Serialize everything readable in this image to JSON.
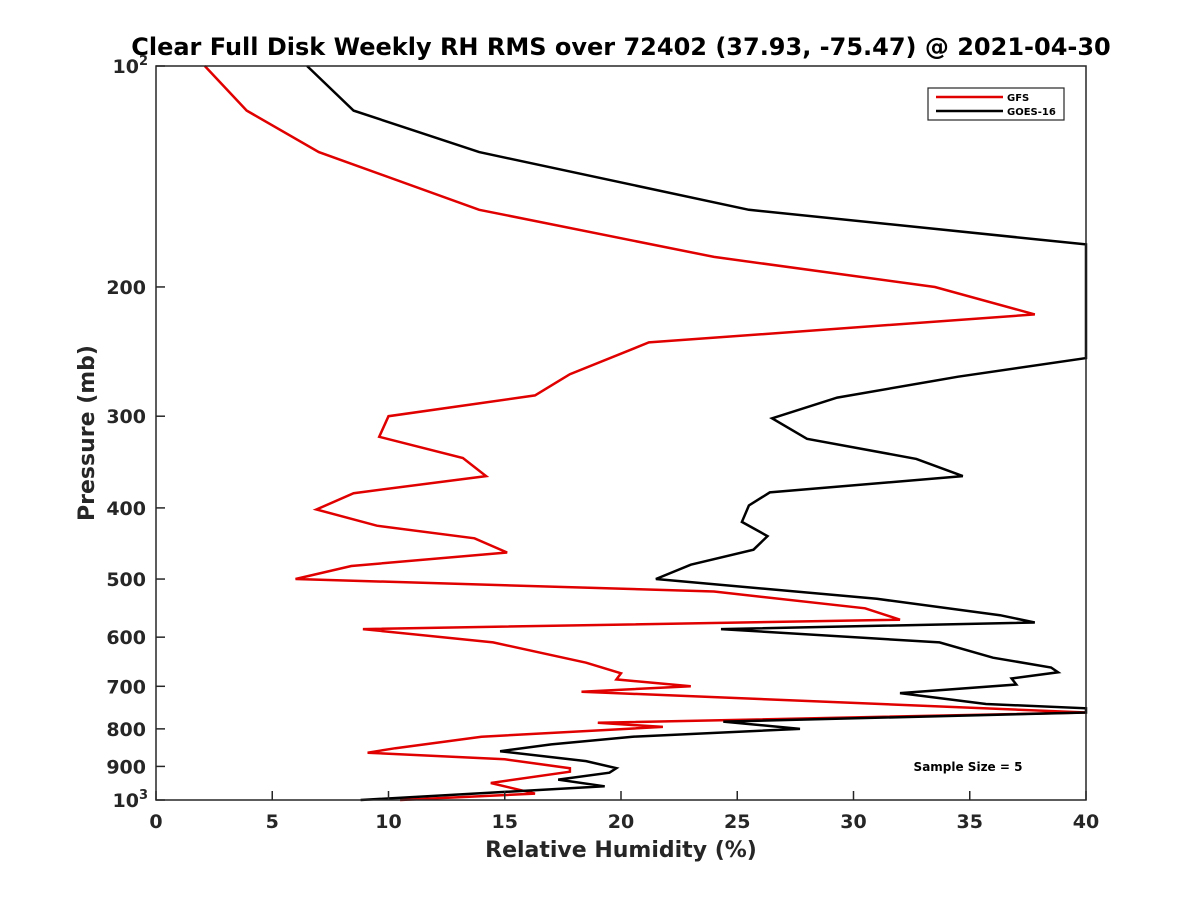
{
  "chart_data": {
    "type": "line",
    "title": "Clear Full Disk Weekly RH RMS over 72402 (37.93, -75.47) @ 2021-04-30",
    "xlabel": "Relative Humidity (%)",
    "ylabel": "Pressure (mb)",
    "xlim": [
      0,
      40
    ],
    "ylim": [
      100,
      1000
    ],
    "yscale": "log",
    "yreversed": true,
    "grid": false,
    "legend_position": "top-right",
    "x_ticks": [
      "0",
      "5",
      "10",
      "15",
      "20",
      "25",
      "30",
      "35",
      "40"
    ],
    "y_ticks": [
      {
        "value": 100,
        "base": "10",
        "exp": "2"
      },
      {
        "value": 200,
        "label": "200"
      },
      {
        "value": 300,
        "label": "300"
      },
      {
        "value": 400,
        "label": "400"
      },
      {
        "value": 500,
        "label": "500"
      },
      {
        "value": 600,
        "label": "600"
      },
      {
        "value": 700,
        "label": "700"
      },
      {
        "value": 800,
        "label": "800"
      },
      {
        "value": 900,
        "label": "900"
      },
      {
        "value": 1000,
        "base": "10",
        "exp": "3"
      }
    ],
    "annotation": "Sample Size = 5",
    "series": [
      {
        "name": "GFS",
        "color": "#e00000",
        "points": [
          [
            2.1,
            100
          ],
          [
            3.9,
            115
          ],
          [
            7.0,
            131
          ],
          [
            13.9,
            157
          ],
          [
            24.0,
            182
          ],
          [
            33.5,
            200
          ],
          [
            37.8,
            218
          ],
          [
            21.2,
            238
          ],
          [
            17.8,
            263
          ],
          [
            16.3,
            281
          ],
          [
            10.0,
            300
          ],
          [
            9.6,
            320
          ],
          [
            13.2,
            342
          ],
          [
            14.2,
            362
          ],
          [
            8.5,
            382
          ],
          [
            6.9,
            402
          ],
          [
            9.5,
            423
          ],
          [
            13.7,
            440
          ],
          [
            15.1,
            460
          ],
          [
            8.4,
            480
          ],
          [
            6.0,
            500
          ],
          [
            24.0,
            520
          ],
          [
            30.5,
            548
          ],
          [
            32.0,
            568
          ],
          [
            8.9,
            585
          ],
          [
            14.5,
            610
          ],
          [
            18.5,
            650
          ],
          [
            20.0,
            672
          ],
          [
            19.8,
            685
          ],
          [
            23.0,
            700
          ],
          [
            18.3,
            712
          ],
          [
            40.0,
            760
          ],
          [
            19.0,
            785
          ],
          [
            21.8,
            795
          ],
          [
            14.0,
            820
          ],
          [
            10.3,
            850
          ],
          [
            9.1,
            862
          ],
          [
            15.0,
            880
          ],
          [
            17.8,
            905
          ],
          [
            17.8,
            915
          ],
          [
            14.4,
            948
          ],
          [
            16.3,
            980
          ],
          [
            10.5,
            1000
          ]
        ]
      },
      {
        "name": "GOES-16",
        "color": "#000000",
        "points": [
          [
            6.5,
            100
          ],
          [
            8.5,
            115
          ],
          [
            13.9,
            131
          ],
          [
            25.5,
            157
          ],
          [
            40.0,
            175
          ],
          [
            40.0,
            250
          ],
          [
            34.5,
            265
          ],
          [
            29.3,
            283
          ],
          [
            26.5,
            302
          ],
          [
            28.0,
            322
          ],
          [
            32.7,
            343
          ],
          [
            34.7,
            362
          ],
          [
            26.4,
            381
          ],
          [
            25.5,
            397
          ],
          [
            25.2,
            418
          ],
          [
            26.3,
            437
          ],
          [
            25.7,
            456
          ],
          [
            23.0,
            478
          ],
          [
            21.5,
            500
          ],
          [
            31.0,
            532
          ],
          [
            36.3,
            560
          ],
          [
            37.8,
            573
          ],
          [
            24.3,
            585
          ],
          [
            33.7,
            610
          ],
          [
            36.0,
            640
          ],
          [
            38.5,
            660
          ],
          [
            38.8,
            670
          ],
          [
            36.8,
            683
          ],
          [
            37.0,
            696
          ],
          [
            32.0,
            715
          ],
          [
            35.7,
            740
          ],
          [
            40.0,
            750
          ],
          [
            40.0,
            760
          ],
          [
            24.4,
            782
          ],
          [
            27.7,
            800
          ],
          [
            20.5,
            820
          ],
          [
            17.0,
            840
          ],
          [
            14.8,
            858
          ],
          [
            18.5,
            885
          ],
          [
            19.8,
            905
          ],
          [
            19.5,
            918
          ],
          [
            17.3,
            938
          ],
          [
            19.3,
            958
          ],
          [
            15.0,
            975
          ],
          [
            8.8,
            1000
          ]
        ]
      }
    ]
  }
}
